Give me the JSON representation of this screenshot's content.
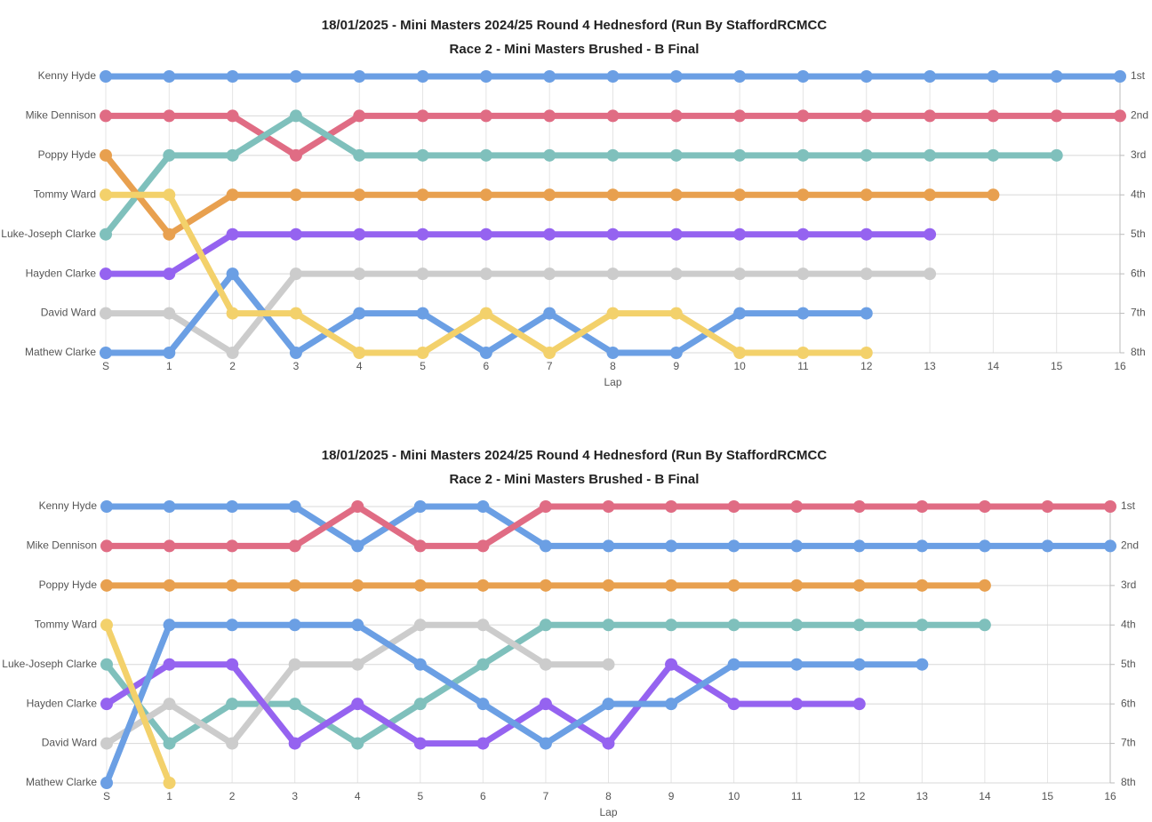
{
  "chart_data": [
    {
      "type": "line",
      "title": "18/01/2025 - Mini Masters 2024/25 Round 4 Hednesford (Run By StaffordRCMCC",
      "subtitle": "Race 2 - Mini Masters Brushed - B Final",
      "x_label": "Lap",
      "categories": [
        "S",
        "1",
        "2",
        "3",
        "4",
        "5",
        "6",
        "7",
        "8",
        "9",
        "10",
        "11",
        "12",
        "13",
        "14",
        "15",
        "16"
      ],
      "ylim": [
        1,
        8
      ],
      "y_inverted": true,
      "grid": true,
      "yticks": [
        {
          "value": 1,
          "label": "Kenny Hyde"
        },
        {
          "value": 2,
          "label": "Mike Dennison"
        },
        {
          "value": 3,
          "label": "Poppy Hyde"
        },
        {
          "value": 4,
          "label": "Tommy Ward"
        },
        {
          "value": 5,
          "label": "Luke-Joseph Clarke"
        },
        {
          "value": 6,
          "label": "Hayden Clarke"
        },
        {
          "value": 7,
          "label": "David Ward"
        },
        {
          "value": 8,
          "label": "Mathew Clarke"
        }
      ],
      "y2ticks": [
        {
          "value": 1,
          "label": "1st"
        },
        {
          "value": 2,
          "label": "2nd"
        },
        {
          "value": 3,
          "label": "3rd"
        },
        {
          "value": 4,
          "label": "4th"
        },
        {
          "value": 5,
          "label": "5th"
        },
        {
          "value": 6,
          "label": "6th"
        },
        {
          "value": 7,
          "label": "7th"
        },
        {
          "value": 8,
          "label": "8th"
        }
      ],
      "series": [
        {
          "color": "#6b9fe4",
          "values": [
            1,
            1,
            1,
            1,
            1,
            1,
            1,
            1,
            1,
            1,
            1,
            1,
            1,
            1,
            1,
            1,
            1
          ]
        },
        {
          "color": "#e06c84",
          "values": [
            2,
            2,
            2,
            3,
            2,
            2,
            2,
            2,
            2,
            2,
            2,
            2,
            2,
            2,
            2,
            2,
            2
          ]
        },
        {
          "color": "#7fc0bc",
          "values": [
            5,
            3,
            3,
            2,
            3,
            3,
            3,
            3,
            3,
            3,
            3,
            3,
            3,
            3,
            3,
            3,
            null
          ]
        },
        {
          "color": "#e8a04f",
          "values": [
            3,
            5,
            4,
            4,
            4,
            4,
            4,
            4,
            4,
            4,
            4,
            4,
            4,
            4,
            4,
            null,
            null
          ]
        },
        {
          "color": "#9563f0",
          "values": [
            6,
            6,
            5,
            5,
            5,
            5,
            5,
            5,
            5,
            5,
            5,
            5,
            5,
            5,
            null,
            null,
            null
          ]
        },
        {
          "color": "#cccccc",
          "values": [
            7,
            7,
            8,
            6,
            6,
            6,
            6,
            6,
            6,
            6,
            6,
            6,
            6,
            6,
            null,
            null,
            null
          ]
        },
        {
          "color": "#6b9fe4",
          "values": [
            8,
            8,
            6,
            8,
            7,
            7,
            8,
            7,
            8,
            8,
            7,
            7,
            7,
            null,
            null,
            null,
            null
          ]
        },
        {
          "color": "#f3d16b",
          "values": [
            4,
            4,
            7,
            7,
            8,
            8,
            7,
            8,
            7,
            7,
            8,
            8,
            8,
            null,
            null,
            null,
            null
          ]
        }
      ]
    },
    {
      "type": "line",
      "title": "18/01/2025 - Mini Masters 2024/25 Round 4 Hednesford (Run By StaffordRCMCC",
      "subtitle": "Race 2 - Mini Masters Brushed - B Final",
      "x_label": "Lap",
      "categories": [
        "S",
        "1",
        "2",
        "3",
        "4",
        "5",
        "6",
        "7",
        "8",
        "9",
        "10",
        "11",
        "12",
        "13",
        "14",
        "15",
        "16"
      ],
      "ylim": [
        1,
        8
      ],
      "y_inverted": true,
      "grid": true,
      "yticks": [
        {
          "value": 1,
          "label": "Kenny Hyde"
        },
        {
          "value": 2,
          "label": "Mike Dennison"
        },
        {
          "value": 3,
          "label": "Poppy Hyde"
        },
        {
          "value": 4,
          "label": "Tommy Ward"
        },
        {
          "value": 5,
          "label": "Luke-Joseph Clarke"
        },
        {
          "value": 6,
          "label": "Hayden Clarke"
        },
        {
          "value": 7,
          "label": "David Ward"
        },
        {
          "value": 8,
          "label": "Mathew Clarke"
        }
      ],
      "y2ticks": [
        {
          "value": 1,
          "label": "1st"
        },
        {
          "value": 2,
          "label": "2nd"
        },
        {
          "value": 3,
          "label": "3rd"
        },
        {
          "value": 4,
          "label": "4th"
        },
        {
          "value": 5,
          "label": "5th"
        },
        {
          "value": 6,
          "label": "6th"
        },
        {
          "value": 7,
          "label": "7th"
        },
        {
          "value": 8,
          "label": "8th"
        }
      ],
      "series": [
        {
          "color": "#6b9fe4",
          "values": [
            1,
            1,
            1,
            1,
            2,
            1,
            1,
            2,
            2,
            2,
            2,
            2,
            2,
            2,
            2,
            2,
            2
          ]
        },
        {
          "color": "#e06c84",
          "values": [
            2,
            2,
            2,
            2,
            1,
            2,
            2,
            1,
            1,
            1,
            1,
            1,
            1,
            1,
            1,
            1,
            1
          ]
        },
        {
          "color": "#e8a04f",
          "values": [
            3,
            3,
            3,
            3,
            3,
            3,
            3,
            3,
            3,
            3,
            3,
            3,
            3,
            3,
            3,
            null,
            null
          ]
        },
        {
          "color": "#7fc0bc",
          "values": [
            5,
            7,
            6,
            6,
            7,
            6,
            5,
            4,
            4,
            4,
            4,
            4,
            4,
            4,
            4,
            null,
            null
          ]
        },
        {
          "color": "#cccccc",
          "values": [
            7,
            6,
            7,
            5,
            5,
            4,
            4,
            5,
            5,
            null,
            null,
            null,
            null,
            null,
            null,
            null,
            null
          ]
        },
        {
          "color": "#9563f0",
          "values": [
            6,
            5,
            5,
            7,
            6,
            7,
            7,
            6,
            7,
            5,
            6,
            6,
            6,
            null,
            null,
            null,
            null
          ]
        },
        {
          "color": "#6b9fe4",
          "values": [
            8,
            4,
            4,
            4,
            4,
            5,
            6,
            7,
            6,
            6,
            5,
            5,
            5,
            5,
            null,
            null,
            null
          ]
        },
        {
          "color": "#f3d16b",
          "values": [
            4,
            8,
            null,
            null,
            null,
            null,
            null,
            null,
            null,
            null,
            null,
            null,
            null,
            null,
            null,
            null,
            null
          ]
        }
      ]
    }
  ]
}
